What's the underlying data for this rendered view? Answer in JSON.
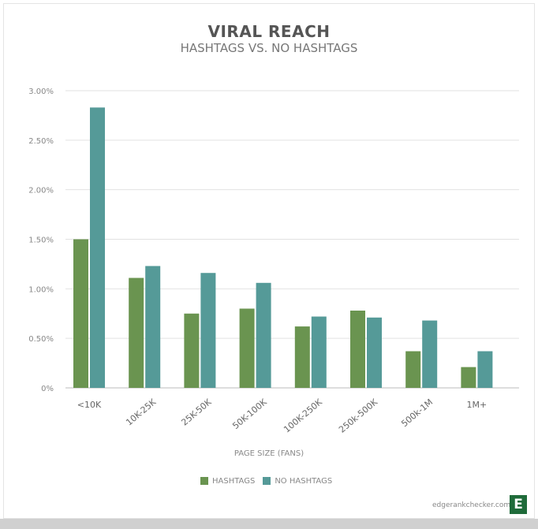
{
  "chart_data": {
    "type": "bar",
    "title": "VIRAL REACH",
    "subtitle": "HASHTAGS VS. NO HASHTAGS",
    "xlabel": "PAGE SIZE (FANS)",
    "ylabel": "",
    "categories": [
      "<10K",
      "10K-25K",
      "25K-50K",
      "50K-100K",
      "100K-250K",
      "250k-500K",
      "500k-1M",
      "1M+"
    ],
    "series": [
      {
        "name": "HASHTAGS",
        "color": "#6a9450",
        "values": [
          1.5,
          1.11,
          0.75,
          0.8,
          0.62,
          0.78,
          0.37,
          0.21
        ]
      },
      {
        "name": "NO HASHTAGS",
        "color": "#559a98",
        "values": [
          2.83,
          1.23,
          1.16,
          1.06,
          0.72,
          0.71,
          0.68,
          0.37
        ]
      }
    ],
    "ylim": [
      0,
      3.0
    ],
    "yticks": [
      "0%",
      "0.50%",
      "1.00%",
      "1.50%",
      "2.00%",
      "2.50%",
      "3.00%"
    ],
    "grid": true,
    "legend": "bottom-center"
  },
  "footer": {
    "credit": "edgerankchecker.com",
    "logo_letter": "E"
  }
}
